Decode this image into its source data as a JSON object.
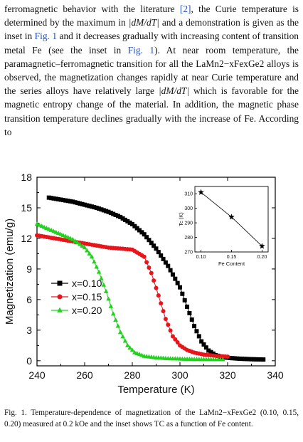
{
  "body_text": {
    "p1": "ferromagnetic behavior with the literature ",
    "ref2": "[2]",
    "p2": ", the Curie temperature is determined by the maximum in ",
    "dmdt1": "|dM/dT|",
    "p3": " and a demonstration is given as the inset in ",
    "fig1a": "Fig. 1",
    "p4": " and it decreases gradually with increasing content of transition metal Fe (see the inset in ",
    "fig1b": "Fig. 1",
    "p5": "). At near room temperature, the paramagnetic–ferromagnetic transition for all the LaMn2−xFexGe2 alloys is observed, the magnetization changes rapidly at near Curie temperature and the series alloys have relatively large ",
    "dmdt2": "|dM/dT|",
    "p6": " which is favorable for the magnetic entropy change of the material. In addition, the magnetic phase transition temperature declines gradually with the increase of Fe. According to"
  },
  "caption": "Fig. 1. Temperature-dependence of magnetization of the LaMn2−xFexGe2 (0.10, 0.15, 0.20) measured at 0.2 kOe and the inset shows TC as a function of Fe content.",
  "colors": {
    "x010": "#000000",
    "x015": "#e8141c",
    "x020": "#22d11e",
    "axis": "#000000"
  },
  "chart_data": [
    {
      "type": "scatter",
      "title": "",
      "xlabel": "Temperature (K)",
      "ylabel": "Magnetization (emu/g)",
      "xlim": [
        240,
        340
      ],
      "ylim": [
        -0.5,
        18
      ],
      "xticks": [
        240,
        260,
        280,
        300,
        320,
        340
      ],
      "yticks": [
        0,
        3,
        6,
        9,
        12,
        15,
        18
      ],
      "legend_position": "center-left",
      "series": [
        {
          "name": "x=0.10",
          "marker": "square",
          "color": "#000000",
          "x": [
            245,
            250,
            255,
            260,
            265,
            270,
            275,
            280,
            285,
            290,
            295,
            300,
            303,
            306,
            309,
            312,
            315,
            318,
            321,
            325,
            330,
            335
          ],
          "y": [
            16.0,
            15.8,
            15.6,
            15.3,
            15.0,
            14.6,
            14.1,
            13.4,
            12.4,
            11.0,
            9.3,
            7.2,
            5.3,
            3.4,
            1.9,
            1.0,
            0.55,
            0.35,
            0.27,
            0.2,
            0.15,
            0.12
          ]
        },
        {
          "name": "x=0.15",
          "marker": "circle",
          "color": "#e8141c",
          "x": [
            240,
            245,
            250,
            255,
            260,
            265,
            270,
            275,
            280,
            285,
            288,
            291,
            294,
            297,
            300,
            303,
            306,
            310,
            315,
            320
          ],
          "y": [
            12.3,
            12.1,
            11.9,
            11.7,
            11.5,
            11.3,
            11.1,
            11.0,
            10.9,
            10.2,
            8.6,
            6.4,
            4.1,
            2.4,
            1.5,
            1.05,
            0.8,
            0.6,
            0.48,
            0.4
          ]
        },
        {
          "name": "x=0.20",
          "marker": "triangle",
          "color": "#22d11e",
          "x": [
            240,
            245,
            250,
            255,
            260,
            263,
            266,
            269,
            272,
            275,
            278,
            281,
            285,
            290,
            295,
            300,
            305,
            310,
            315,
            318
          ],
          "y": [
            13.4,
            12.9,
            12.4,
            11.9,
            11.1,
            10.2,
            8.7,
            6.8,
            4.6,
            2.8,
            1.5,
            0.8,
            0.45,
            0.3,
            0.22,
            0.18,
            0.15,
            0.13,
            0.12,
            0.12
          ]
        }
      ]
    },
    {
      "type": "line",
      "title": "",
      "xlabel": "Fe Content",
      "ylabel": "Tc (K)",
      "xlim": [
        0.09,
        0.21
      ],
      "ylim": [
        270,
        315
      ],
      "xticks": [
        0.1,
        0.15,
        0.2
      ],
      "yticks": [
        270,
        280,
        290,
        300,
        310
      ],
      "series": [
        {
          "marker": "star",
          "color": "#000000",
          "x": [
            0.1,
            0.15,
            0.2
          ],
          "y": [
            311,
            294,
            274
          ]
        }
      ]
    }
  ]
}
